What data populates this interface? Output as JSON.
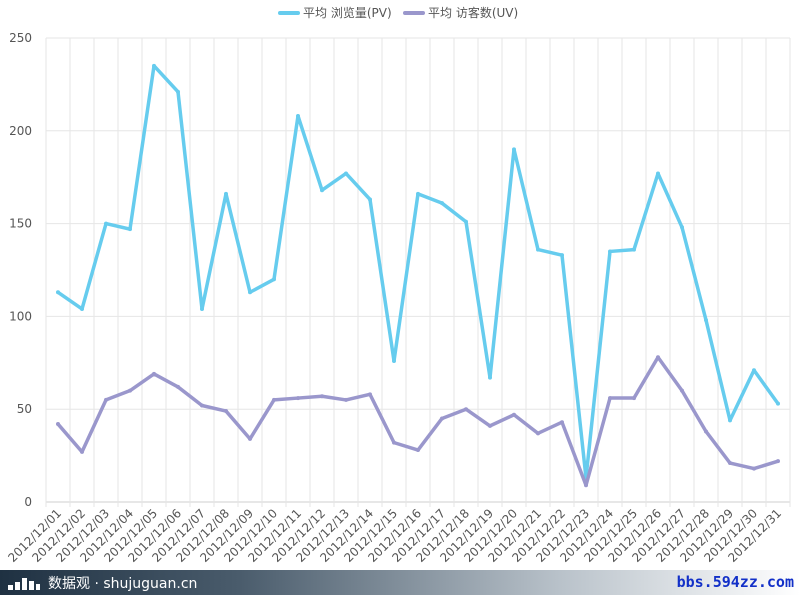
{
  "colors": {
    "pv": "#66ccee",
    "uv": "#9a97cc",
    "grid": "#e6e6e6"
  },
  "legend": {
    "items": [
      "平均 浏览量(PV)",
      "平均 访客数(UV)"
    ]
  },
  "footer": {
    "brand_text": "数据观 · shujuguan.cn",
    "brand_icon": "bar-logo-icon",
    "watermark": "bbs.594zz.com"
  },
  "chart_data": {
    "type": "line",
    "title": "",
    "xlabel": "",
    "ylabel": "",
    "ylim": [
      0,
      250
    ],
    "yticks": [
      0,
      50,
      100,
      150,
      200,
      250
    ],
    "grid": true,
    "legend_position": "top-center",
    "categories": [
      "2012/12/01",
      "2012/12/02",
      "2012/12/03",
      "2012/12/04",
      "2012/12/05",
      "2012/12/06",
      "2012/12/07",
      "2012/12/08",
      "2012/12/09",
      "2012/12/10",
      "2012/12/11",
      "2012/12/12",
      "2012/12/13",
      "2012/12/14",
      "2012/12/15",
      "2012/12/16",
      "2012/12/17",
      "2012/12/18",
      "2012/12/19",
      "2012/12/20",
      "2012/12/21",
      "2012/12/22",
      "2012/12/23",
      "2012/12/24",
      "2012/12/25",
      "2012/12/26",
      "2012/12/27",
      "2012/12/28",
      "2012/12/29",
      "2012/12/30",
      "2012/12/31"
    ],
    "series": [
      {
        "name": "平均 浏览量(PV)",
        "values": [
          113,
          104,
          150,
          147,
          235,
          221,
          104,
          166,
          113,
          120,
          208,
          168,
          177,
          163,
          76,
          166,
          161,
          151,
          67,
          190,
          136,
          133,
          13,
          135,
          136,
          177,
          148,
          98,
          44,
          71,
          53
        ]
      },
      {
        "name": "平均 访客数(UV)",
        "values": [
          42,
          27,
          55,
          60,
          69,
          62,
          52,
          49,
          34,
          55,
          56,
          57,
          55,
          58,
          32,
          28,
          45,
          50,
          41,
          47,
          37,
          43,
          9,
          56,
          56,
          78,
          60,
          38,
          21,
          18,
          22
        ]
      }
    ]
  }
}
